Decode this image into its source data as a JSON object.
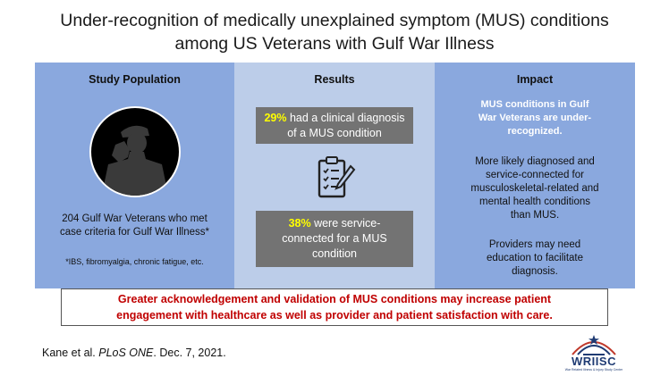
{
  "title": {
    "line1": "Under-recognition of medically unexplained symptom (MUS) conditions",
    "line2": "among US Veterans with Gulf War Illness"
  },
  "population": {
    "heading": "Study Population",
    "text_line1": "204 Gulf War Veterans who met",
    "text_line2": "case criteria for Gulf War Illness*",
    "note": "*IBS, fibromyalgia, chronic fatigue, etc.",
    "icon": "saluting-soldier-icon"
  },
  "results": {
    "heading": "Results",
    "stat1_pct": "29%",
    "stat1_text_a": " had a clinical diagnosis",
    "stat1_text_b": "of a MUS condition",
    "stat2_pct": "38%",
    "stat2_text_a": " were service-",
    "stat2_text_b": "connected for a MUS",
    "stat2_text_c": "condition",
    "icon": "clipboard-checklist-icon"
  },
  "impact": {
    "heading": "Impact",
    "highlight_line1": "MUS conditions in Gulf",
    "highlight_line2": "War Veterans are under-",
    "highlight_line3": "recognized.",
    "p1_line1": "More likely diagnosed and",
    "p1_line2": "service-connected for",
    "p1_line3": "musculoskeletal-related and",
    "p1_line4": "mental health conditions",
    "p1_line5": "than MUS.",
    "p2_line1": "Providers may need",
    "p2_line2": "education to facilitate",
    "p2_line3": "diagnosis."
  },
  "banner": {
    "line1": "Greater acknowledgement and validation of MUS conditions may increase patient",
    "line2": "engagement with healthcare as well as provider and patient satisfaction with care."
  },
  "citation": {
    "authors": "Kane et al. ",
    "journal": "PLoS ONE",
    "date": ". Dec. 7, 2021."
  },
  "logo": {
    "name": "WRIISC",
    "subtitle": "War Related Illness & Injury Study Center"
  },
  "colors": {
    "panel_dark": "#8aa8de",
    "panel_light": "#bccde9",
    "stat_box": "#737373",
    "highlight": "#ffff00",
    "banner_text": "#c00000"
  }
}
